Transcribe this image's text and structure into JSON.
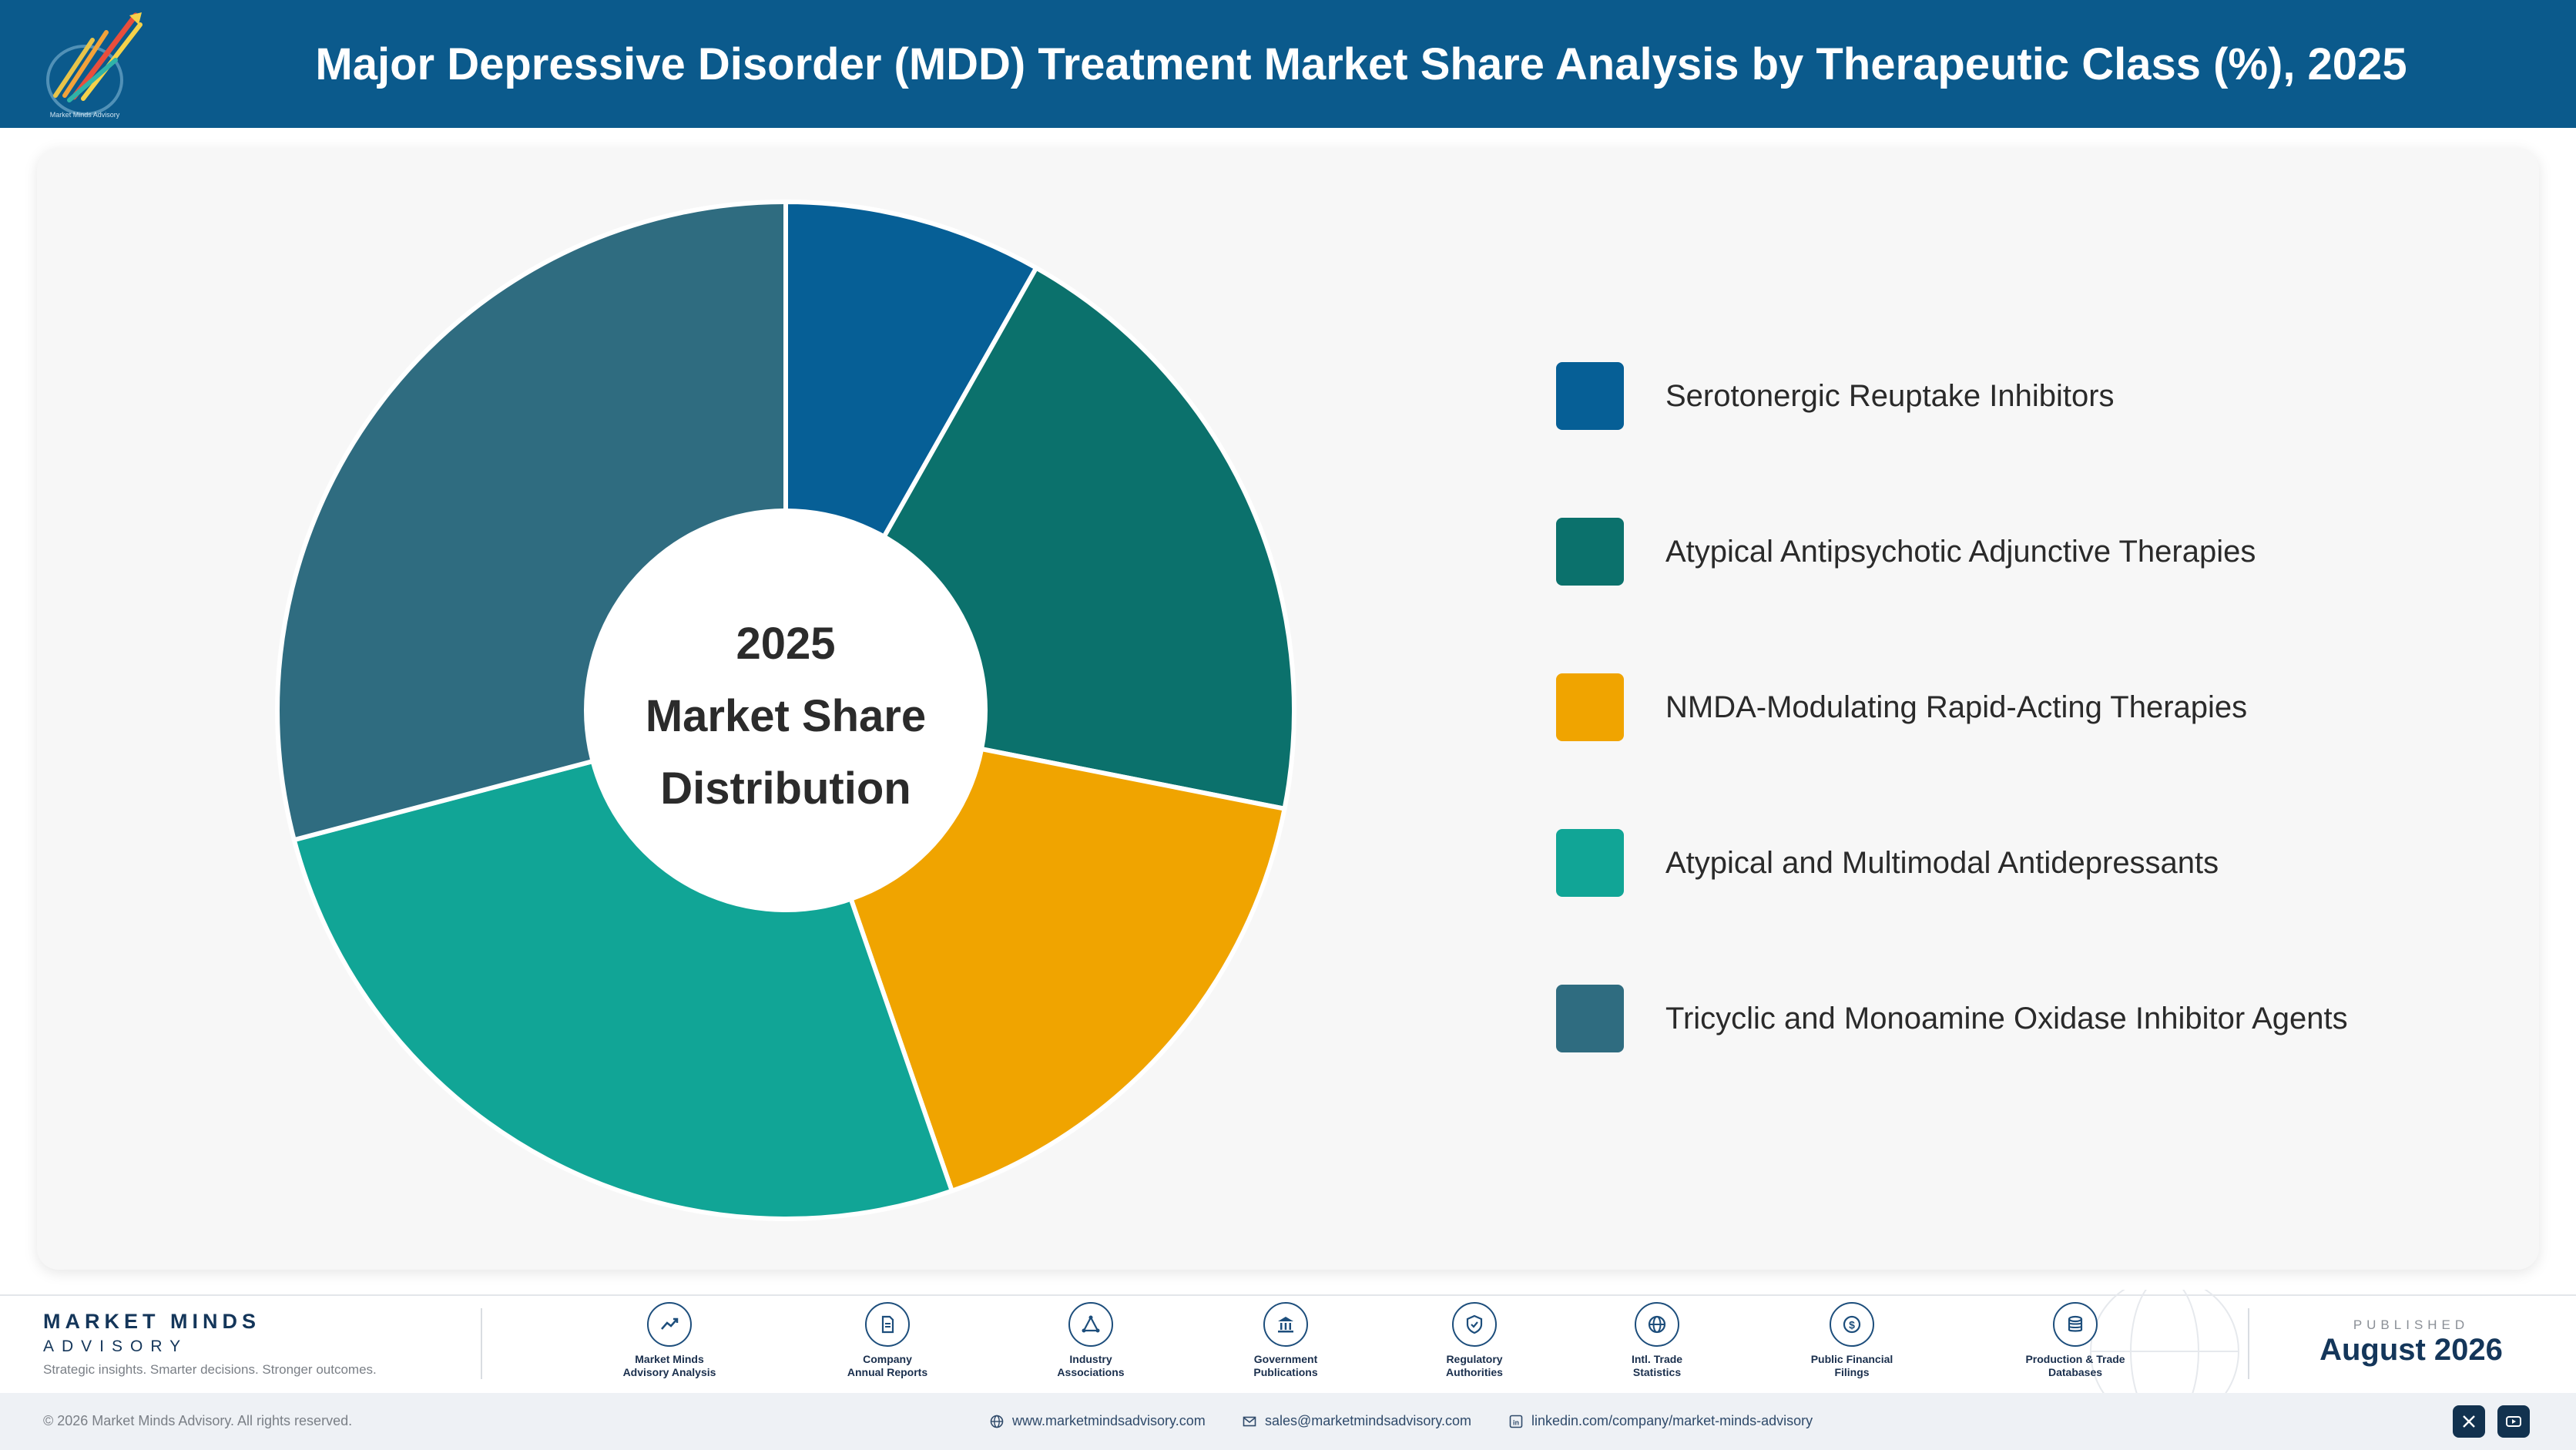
{
  "header": {
    "title": "Major Depressive Disorder (MDD) Treatment Market Share Analysis by Therapeutic Class (%), 2025",
    "logo_caption": "Market Minds Advisory"
  },
  "chart_data": {
    "type": "pie",
    "title": "Major Depressive Disorder (MDD) Treatment Market Share Analysis by Therapeutic Class (%), 2025",
    "center_label": [
      "2025",
      "Market Share",
      "Distribution"
    ],
    "categories": [
      "Serotonergic Reuptake Inhibitors",
      "Atypical Antipsychotic Adjunctive Therapies",
      "NMDA-Modulating Rapid-Acting Therapies",
      "Atypical and Multimodal Antidepressants",
      "Tricyclic and Monoamine Oxidase Inhibitor Agents"
    ],
    "values": [
      8.2,
      19.9,
      16.6,
      26.2,
      29.1
    ],
    "colors": [
      "#065f96",
      "#0b716c",
      "#f0a400",
      "#11a596",
      "#2f6c80"
    ],
    "legend_position": "right"
  },
  "footer": {
    "brand_name": "MARKET MINDS",
    "brand_sub": "ADVISORY",
    "tagline": "Strategic insights. Smarter decisions. Stronger outcomes.",
    "sources": [
      {
        "line1": "Market Minds",
        "line2": "Advisory Analysis",
        "icon": "trend-line-icon"
      },
      {
        "line1": "Company",
        "line2": "Annual Reports",
        "icon": "document-icon"
      },
      {
        "line1": "Industry",
        "line2": "Associations",
        "icon": "network-icon"
      },
      {
        "line1": "Government",
        "line2": "Publications",
        "icon": "government-building-icon"
      },
      {
        "line1": "Regulatory",
        "line2": "Authorities",
        "icon": "shield-check-icon"
      },
      {
        "line1": "Intl. Trade",
        "line2": "Statistics",
        "icon": "globe-icon"
      },
      {
        "line1": "Public Financial",
        "line2": "Filings",
        "icon": "dollar-coin-icon"
      },
      {
        "line1": "Production & Trade",
        "line2": "Databases",
        "icon": "database-icon"
      }
    ],
    "published_label": "PUBLISHED",
    "published_date": "August 2026",
    "copyright": "© 2026 Market Minds Advisory. All rights reserved.",
    "website": "www.marketmindsadvisory.com",
    "email": "sales@marketmindsadvisory.com",
    "linkedin": "linkedin.com/company/market-minds-advisory"
  }
}
